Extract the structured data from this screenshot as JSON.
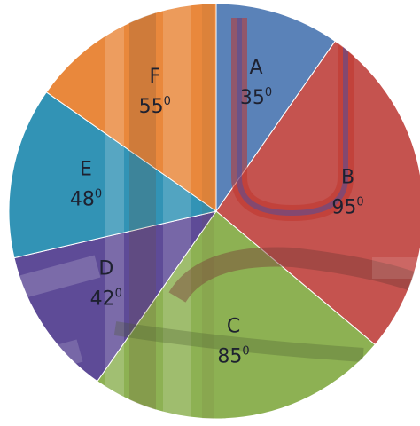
{
  "chart_data": {
    "type": "pie",
    "unit": "degrees",
    "categories": [
      "A",
      "B",
      "C",
      "D",
      "E",
      "F"
    ],
    "values": [
      35,
      95,
      85,
      42,
      48,
      55
    ],
    "value_labels": [
      "35",
      "95",
      "85",
      "42",
      "48",
      "55"
    ],
    "degree_mark": "0",
    "start_angle": 0,
    "direction": "clockwise",
    "colors": [
      "#5a82b8",
      "#c5534f",
      "#8db153",
      "#5e4b97",
      "#3293b5",
      "#e9883c"
    ],
    "legend": "none",
    "title": ""
  }
}
